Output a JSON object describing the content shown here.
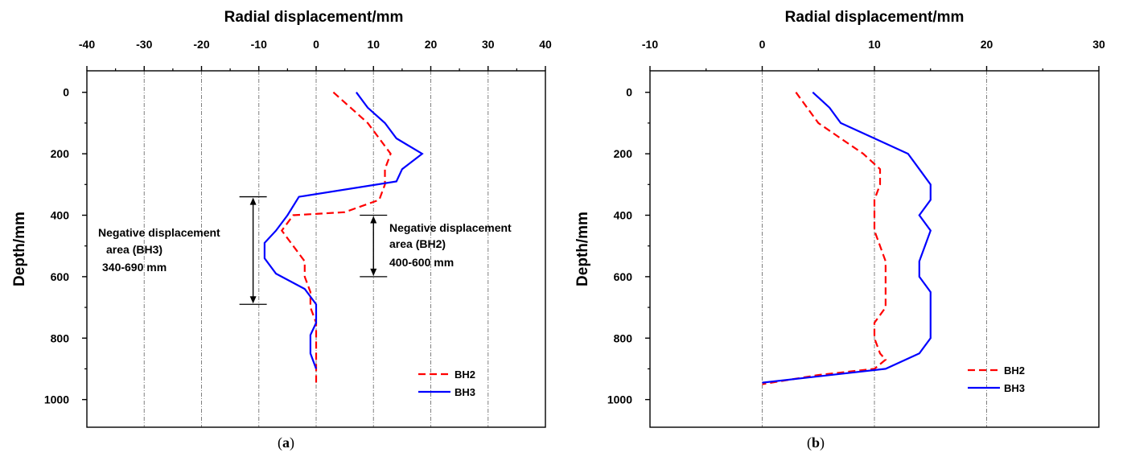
{
  "chart_data": [
    {
      "type": "line",
      "panel_label": {
        "open": "(",
        "letter": "a",
        "close": ")"
      },
      "xlabel": "Radial displacement/mm",
      "ylabel": "Depth/mm",
      "x_axis_position": "top",
      "y_axis_inverted": true,
      "xlim": [
        -40,
        40
      ],
      "ylim": [
        -70,
        1090
      ],
      "x_ticks": [
        -40,
        -30,
        -20,
        -10,
        0,
        10,
        20,
        30,
        40
      ],
      "y_ticks": [
        0,
        200,
        400,
        600,
        800,
        1000
      ],
      "grid": "vertical dash-dot",
      "legend_position": "bottom-right",
      "series": [
        {
          "name": "BH2",
          "color": "#ff0000",
          "style": "dashed",
          "points": [
            [
              3,
              0
            ],
            [
              6,
              50
            ],
            [
              9,
              100
            ],
            [
              11,
              150
            ],
            [
              13,
              200
            ],
            [
              12,
              250
            ],
            [
              12,
              300
            ],
            [
              11,
              350
            ],
            [
              5,
              390
            ],
            [
              -4,
              400
            ],
            [
              -6,
              450
            ],
            [
              -4,
              500
            ],
            [
              -2,
              550
            ],
            [
              -2,
              600
            ],
            [
              -1,
              650
            ],
            [
              -1,
              700
            ],
            [
              0,
              750
            ],
            [
              0,
              800
            ],
            [
              0,
              850
            ],
            [
              0,
              900
            ],
            [
              0,
              950
            ]
          ]
        },
        {
          "name": "BH3",
          "color": "#0000ff",
          "style": "solid",
          "points": [
            [
              7,
              0
            ],
            [
              9,
              50
            ],
            [
              12,
              100
            ],
            [
              14,
              150
            ],
            [
              18.5,
              200
            ],
            [
              15,
              250
            ],
            [
              14,
              290
            ],
            [
              -3,
              340
            ],
            [
              -5,
              400
            ],
            [
              -7,
              450
            ],
            [
              -9,
              490
            ],
            [
              -9,
              540
            ],
            [
              -7,
              590
            ],
            [
              -2,
              640
            ],
            [
              0,
              690
            ],
            [
              0,
              750
            ],
            [
              -1,
              790
            ],
            [
              -1,
              850
            ],
            [
              0,
              900
            ]
          ]
        }
      ],
      "annotations": [
        {
          "text_lines": [
            "Negative displacement",
            "area (BH3)",
            "340-690 mm"
          ],
          "range": [
            340,
            690
          ],
          "x": -11
        },
        {
          "text_lines": [
            "Negative displacement",
            "area (BH2)",
            "400-600 mm"
          ],
          "range": [
            400,
            600
          ],
          "x": 10
        }
      ]
    },
    {
      "type": "line",
      "panel_label": {
        "open": "(",
        "letter": "b",
        "close": ")"
      },
      "xlabel": "Radial displacement/mm",
      "ylabel": "Depth/mm",
      "x_axis_position": "top",
      "y_axis_inverted": true,
      "xlim": [
        -10,
        30
      ],
      "ylim": [
        -70,
        1090
      ],
      "x_ticks": [
        -10,
        0,
        10,
        20,
        30
      ],
      "y_ticks": [
        0,
        200,
        400,
        600,
        800,
        1000
      ],
      "grid": "vertical dash-dot",
      "legend_position": "bottom-right",
      "series": [
        {
          "name": "BH2",
          "color": "#ff0000",
          "style": "dashed",
          "points": [
            [
              3,
              0
            ],
            [
              4,
              50
            ],
            [
              5,
              100
            ],
            [
              7,
              150
            ],
            [
              9,
              200
            ],
            [
              10.5,
              250
            ],
            [
              10.5,
              300
            ],
            [
              10,
              350
            ],
            [
              10,
              400
            ],
            [
              10,
              450
            ],
            [
              10.5,
              500
            ],
            [
              11,
              550
            ],
            [
              11,
              600
            ],
            [
              11,
              650
            ],
            [
              11,
              700
            ],
            [
              10,
              750
            ],
            [
              10,
              800
            ],
            [
              10.5,
              850
            ],
            [
              11,
              870
            ],
            [
              10,
              900
            ],
            [
              5,
              920
            ],
            [
              0,
              950
            ]
          ]
        },
        {
          "name": "BH3",
          "color": "#0000ff",
          "style": "solid",
          "points": [
            [
              4.5,
              0
            ],
            [
              6,
              50
            ],
            [
              7,
              100
            ],
            [
              10,
              150
            ],
            [
              13,
              200
            ],
            [
              14,
              250
            ],
            [
              15,
              300
            ],
            [
              15,
              350
            ],
            [
              14,
              400
            ],
            [
              15,
              450
            ],
            [
              14.5,
              500
            ],
            [
              14,
              550
            ],
            [
              14,
              600
            ],
            [
              15,
              650
            ],
            [
              15,
              700
            ],
            [
              15,
              750
            ],
            [
              15,
              800
            ],
            [
              14,
              850
            ],
            [
              11,
              900
            ],
            [
              0,
              945
            ]
          ]
        }
      ]
    }
  ]
}
